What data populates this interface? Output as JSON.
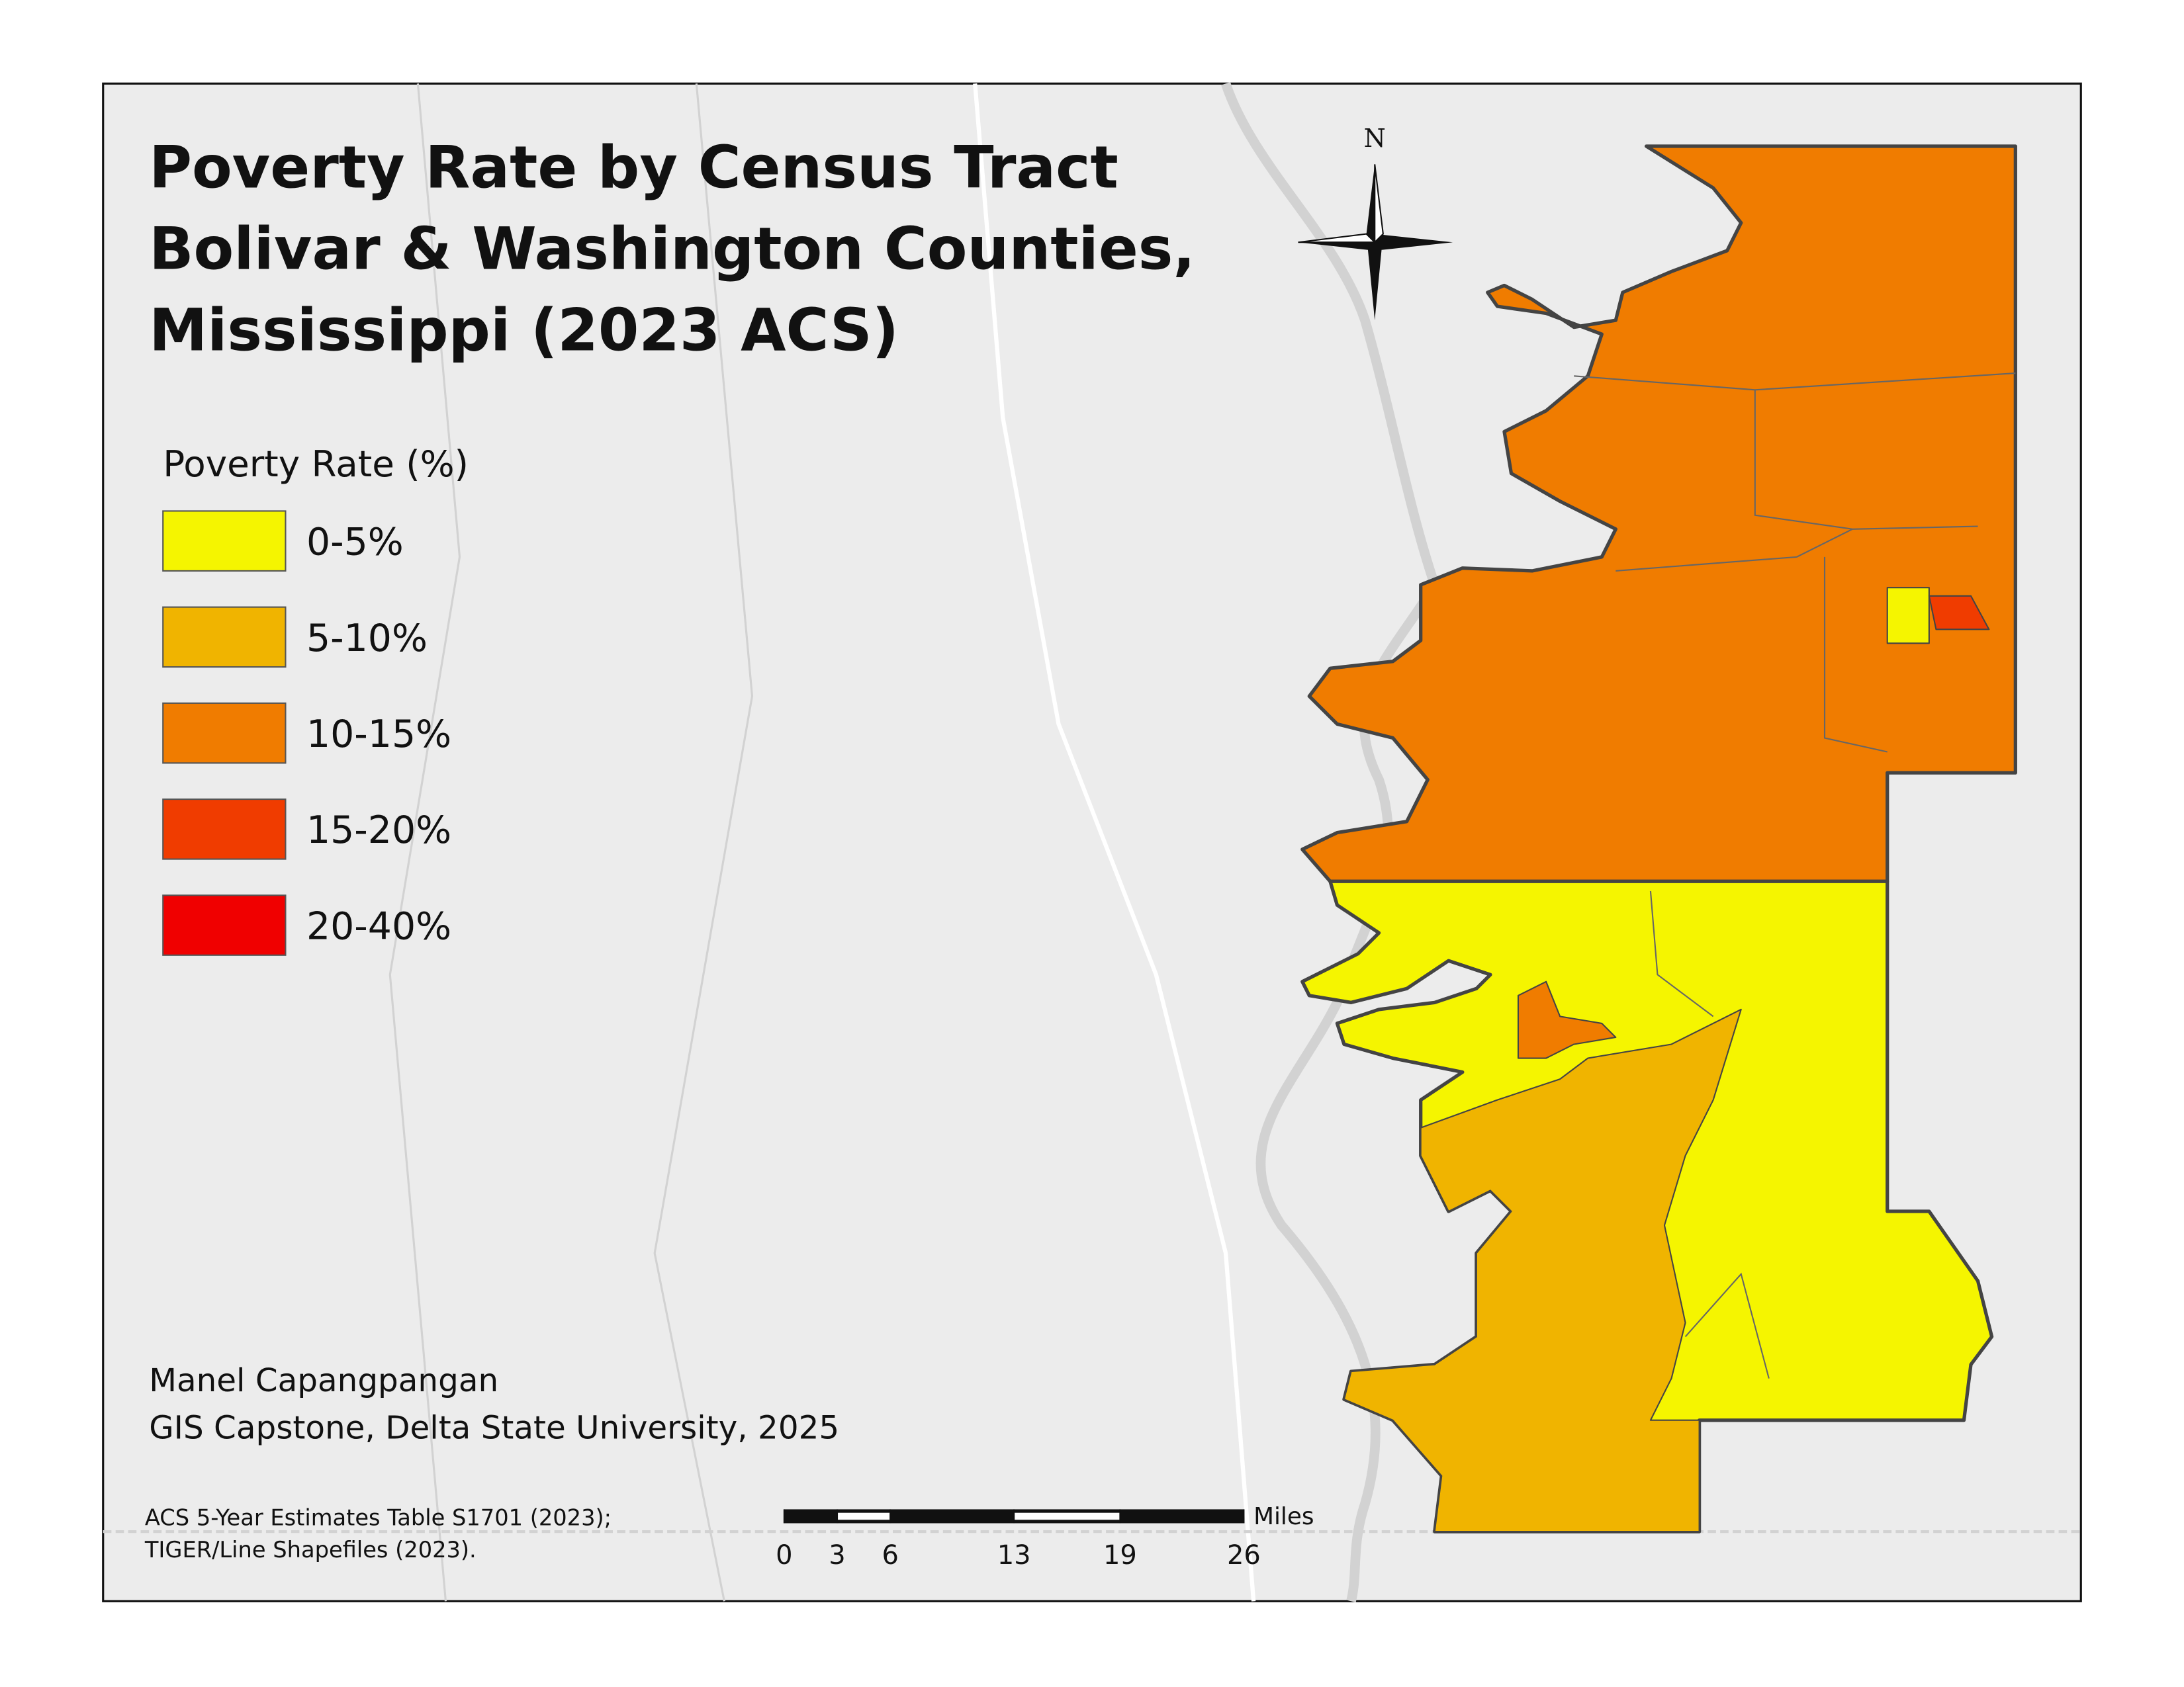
{
  "map": {
    "title_lines": [
      "Poverty Rate by Census Tract",
      "Bolivar & Washington Counties,",
      "Mississippi (2023 ACS)"
    ],
    "legend": {
      "title": "Poverty Rate (%)",
      "items": [
        {
          "label": "0-5%",
          "color": "#f5f500"
        },
        {
          "label": "5-10%",
          "color": "#f0b400"
        },
        {
          "label": "10-15%",
          "color": "#f07c00"
        },
        {
          "label": "15-20%",
          "color": "#f03c00"
        },
        {
          "label": "20-40%",
          "color": "#f00000"
        }
      ]
    },
    "author": [
      "Manel Capangpangan",
      "GIS Capstone, Delta State University, 2025"
    ],
    "sources": [
      "ACS 5-Year Estimates Table S1701 (2023);",
      "TIGER/Line Shapefiles (2023)."
    ],
    "north_label": "N",
    "scale_bar": {
      "unit": "Miles",
      "ticks": [
        0,
        3,
        6,
        13,
        19,
        26
      ]
    }
  }
}
